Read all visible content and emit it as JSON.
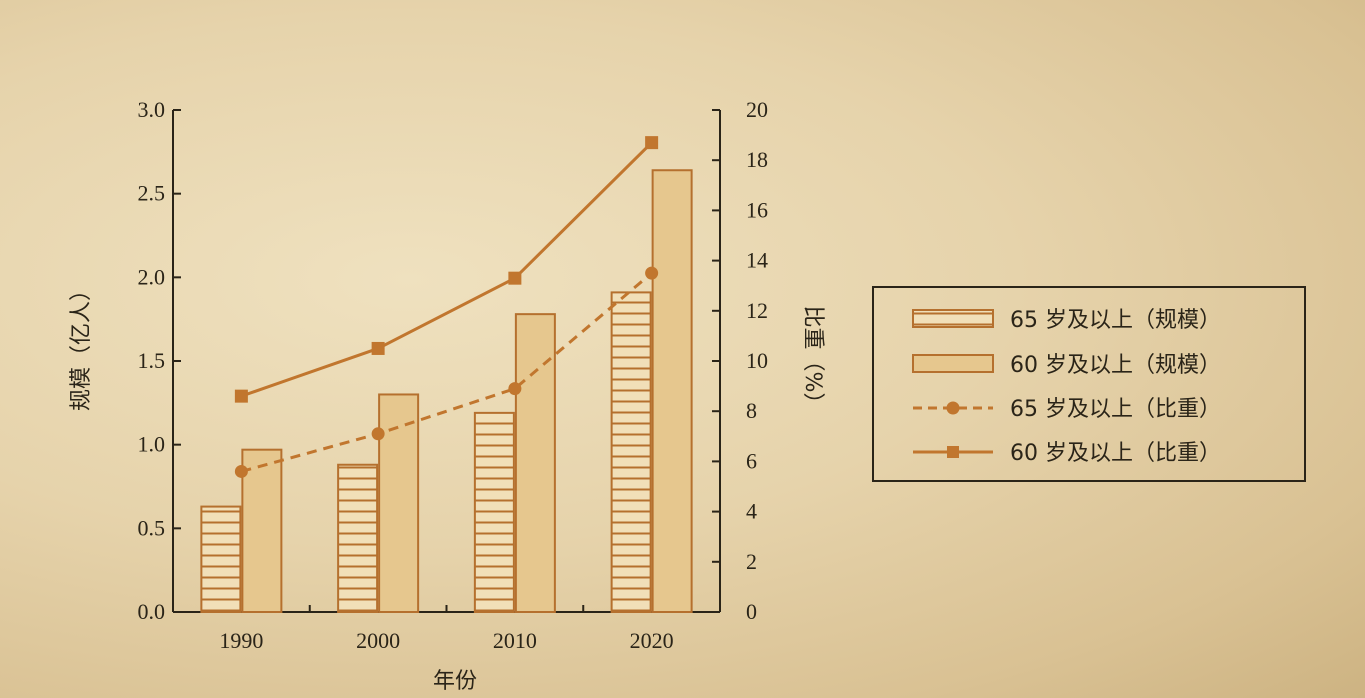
{
  "chart_data": {
    "type": "bar",
    "categories": [
      "1990",
      "2000",
      "2010",
      "2020"
    ],
    "xlabel": "年份",
    "ylabel_left": "规模（亿人）",
    "ylabel_right": "比重（%）",
    "ylim_left": [
      0,
      3.0
    ],
    "yticks_left": [
      "0.0",
      "0.5",
      "1.0",
      "1.5",
      "2.0",
      "2.5",
      "3.0"
    ],
    "ylim_right": [
      0,
      20
    ],
    "yticks_right": [
      "0",
      "2",
      "4",
      "6",
      "8",
      "10",
      "12",
      "14",
      "16",
      "18",
      "20"
    ],
    "bar_series": [
      {
        "name": "65 岁及以上（规模）",
        "values": [
          0.63,
          0.88,
          1.19,
          1.91
        ],
        "pattern": "hatched"
      },
      {
        "name": "60 岁及以上（规模）",
        "values": [
          0.97,
          1.3,
          1.78,
          2.64
        ],
        "pattern": "solid"
      }
    ],
    "line_series": [
      {
        "name": "65 岁及以上（比重）",
        "values": [
          5.6,
          7.1,
          8.9,
          13.5
        ],
        "style": "dashed",
        "marker": "circle"
      },
      {
        "name": "60 岁及以上（比重）",
        "values": [
          8.6,
          10.5,
          13.3,
          18.7
        ],
        "style": "solid",
        "marker": "square"
      }
    ],
    "legend_position": "right",
    "colors": {
      "line": "#c1762e",
      "bar_edge": "#b5702e",
      "bar_fill": "#e6c78e",
      "hatch_bg": "#f1dfb8",
      "axis": "#2a2418"
    }
  }
}
